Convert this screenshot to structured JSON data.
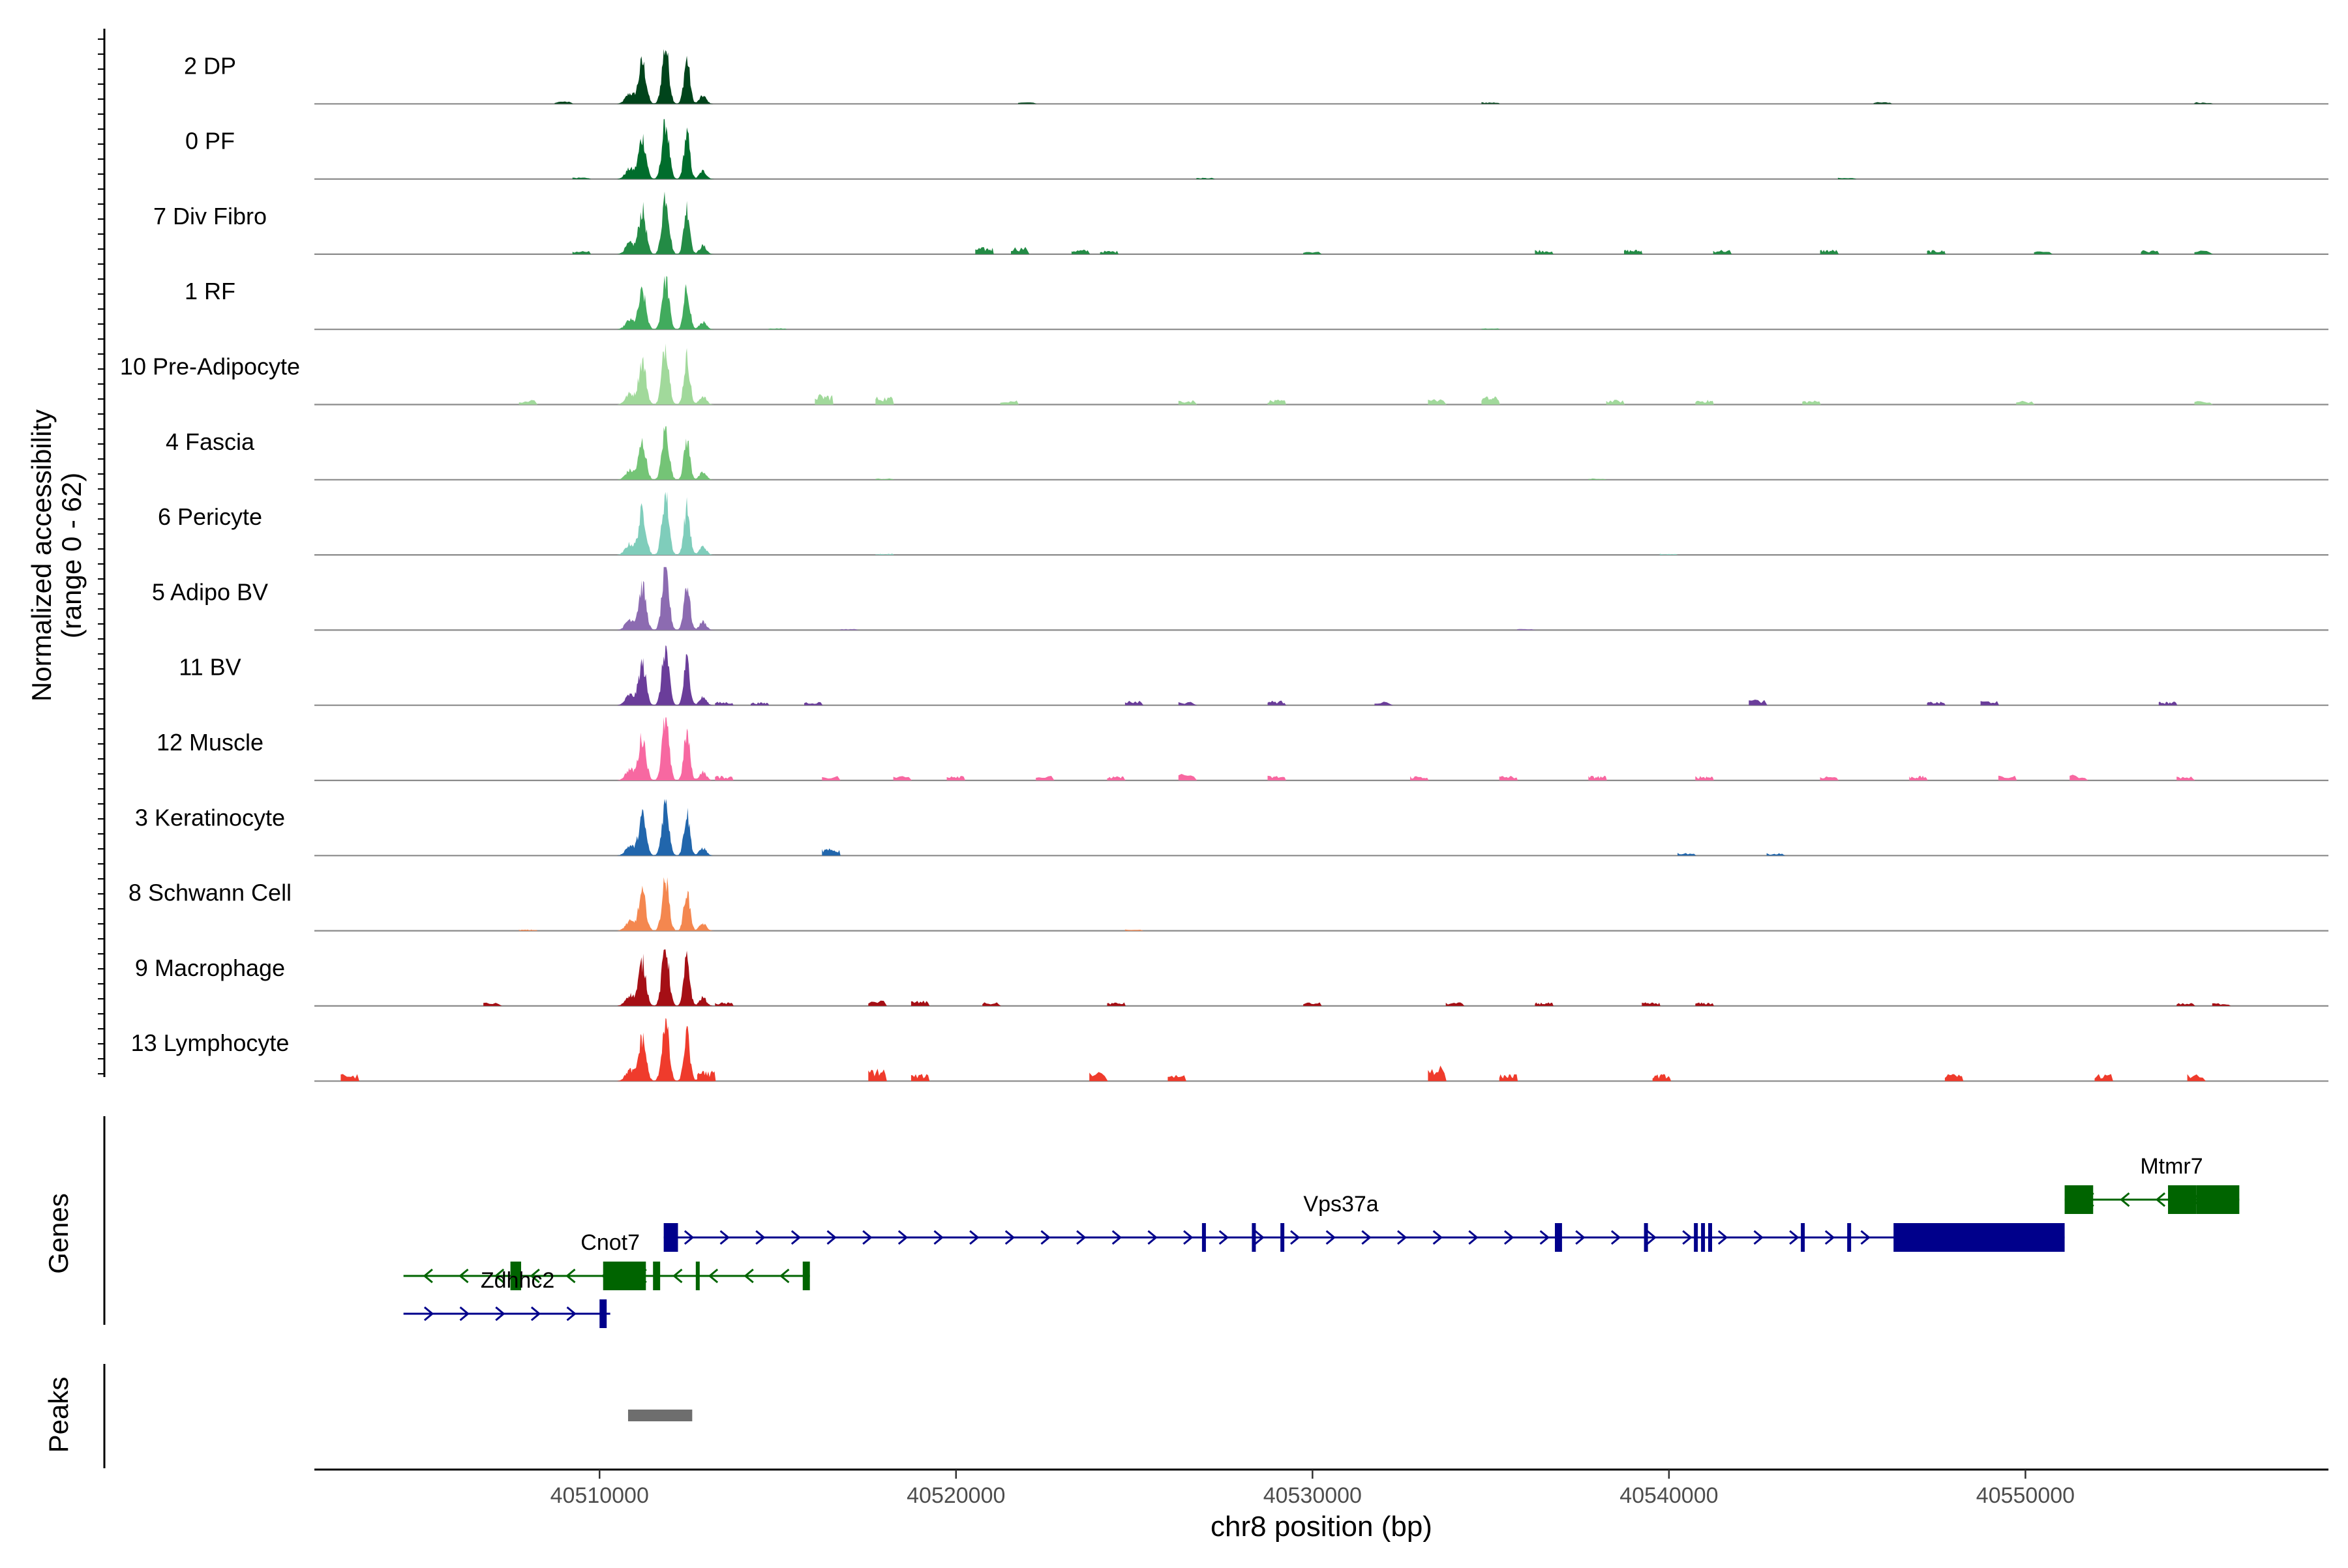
{
  "chart_data": {
    "type": "coverage-track",
    "genome": "chr8",
    "x_range": [
      40502000,
      40558500
    ],
    "xlabel": "chr8 position (bp)",
    "x_ticks": [
      {
        "value": 40510000,
        "label": "40510000"
      },
      {
        "value": 40520000,
        "label": "40520000"
      },
      {
        "value": 40530000,
        "label": "40530000"
      },
      {
        "value": 40540000,
        "label": "40540000"
      },
      {
        "value": 40550000,
        "label": "40550000"
      }
    ],
    "y_axis": {
      "label_line1": "Normalized accessibility",
      "label_line2": "(range 0 - 62)",
      "range": [
        0,
        62
      ]
    },
    "tracks": [
      {
        "name": "2 DP",
        "color": "#00441B",
        "peak_intensity": 0.95,
        "background": [
          [
            40509000,
            0.04
          ],
          [
            40522000,
            0.03
          ],
          [
            40535000,
            0.03
          ],
          [
            40546000,
            0.03
          ],
          [
            40555000,
            0.03
          ]
        ]
      },
      {
        "name": "0 PF",
        "color": "#006D2C",
        "peak_intensity": 0.95,
        "background": [
          [
            40509500,
            0.03
          ],
          [
            40527000,
            0.02
          ],
          [
            40545000,
            0.02
          ]
        ]
      },
      {
        "name": "7 Div Fibro",
        "color": "#238B45",
        "peak_intensity": 1.0,
        "background": [
          [
            40509500,
            0.06
          ],
          [
            40520800,
            0.12
          ],
          [
            40521800,
            0.13
          ],
          [
            40523500,
            0.08
          ],
          [
            40524300,
            0.06
          ],
          [
            40530000,
            0.06
          ],
          [
            40536500,
            0.08
          ],
          [
            40539000,
            0.08
          ],
          [
            40541500,
            0.08
          ],
          [
            40544500,
            0.08
          ],
          [
            40547500,
            0.07
          ],
          [
            40550500,
            0.06
          ],
          [
            40553500,
            0.07
          ],
          [
            40555000,
            0.06
          ]
        ]
      },
      {
        "name": "1 RF",
        "color": "#41AB5D",
        "peak_intensity": 0.85,
        "background": [
          [
            40515000,
            0.02
          ],
          [
            40535000,
            0.02
          ]
        ]
      },
      {
        "name": "10 Pre-Adipocyte",
        "color": "#A1D99B",
        "peak_intensity": 1.0,
        "background": [
          [
            40508000,
            0.08
          ],
          [
            40516300,
            0.18
          ],
          [
            40518000,
            0.14
          ],
          [
            40521500,
            0.08
          ],
          [
            40526500,
            0.08
          ],
          [
            40529000,
            0.08
          ],
          [
            40533500,
            0.12
          ],
          [
            40535000,
            0.14
          ],
          [
            40538500,
            0.08
          ],
          [
            40541000,
            0.08
          ],
          [
            40544000,
            0.07
          ],
          [
            40550000,
            0.07
          ],
          [
            40555000,
            0.06
          ]
        ]
      },
      {
        "name": "4 Fascia",
        "color": "#74C476",
        "peak_intensity": 0.85,
        "background": [
          [
            40518000,
            0.02
          ],
          [
            40538000,
            0.02
          ]
        ]
      },
      {
        "name": "6 Pericyte",
        "color": "#7FCDBB",
        "peak_intensity": 1.0,
        "background": [
          [
            40518000,
            0.02
          ],
          [
            40540000,
            0.02
          ]
        ]
      },
      {
        "name": "5 Adipo BV",
        "color": "#8C6BB1",
        "peak_intensity": 1.0,
        "background": [
          [
            40517000,
            0.02
          ],
          [
            40536000,
            0.02
          ]
        ]
      },
      {
        "name": "11 BV",
        "color": "#6A3D9A",
        "peak_intensity": 0.95,
        "background": [
          [
            40513500,
            0.06
          ],
          [
            40514500,
            0.05
          ],
          [
            40516000,
            0.06
          ],
          [
            40525000,
            0.08
          ],
          [
            40526500,
            0.06
          ],
          [
            40529000,
            0.08
          ],
          [
            40532000,
            0.06
          ],
          [
            40542500,
            0.1
          ],
          [
            40547500,
            0.06
          ],
          [
            40549000,
            0.08
          ],
          [
            40554000,
            0.06
          ]
        ]
      },
      {
        "name": "12 Muscle",
        "color": "#F768A1",
        "peak_intensity": 1.0,
        "background": [
          [
            40513500,
            0.08
          ],
          [
            40516500,
            0.08
          ],
          [
            40518500,
            0.08
          ],
          [
            40520000,
            0.1
          ],
          [
            40522500,
            0.08
          ],
          [
            40524500,
            0.07
          ],
          [
            40526500,
            0.12
          ],
          [
            40529000,
            0.08
          ],
          [
            40533000,
            0.08
          ],
          [
            40535500,
            0.08
          ],
          [
            40538000,
            0.08
          ],
          [
            40541000,
            0.08
          ],
          [
            40544500,
            0.08
          ],
          [
            40547000,
            0.08
          ],
          [
            40549500,
            0.08
          ],
          [
            40551500,
            0.1
          ],
          [
            40554500,
            0.07
          ]
        ]
      },
      {
        "name": "3 Keratinocyte",
        "color": "#2166AC",
        "peak_intensity": 0.9,
        "background": [
          [
            40516500,
            0.12
          ],
          [
            40540500,
            0.05
          ],
          [
            40543000,
            0.04
          ]
        ]
      },
      {
        "name": "8 Schwann Cell",
        "color": "#F4874F",
        "peak_intensity": 0.85,
        "background": [
          [
            40508000,
            0.02
          ],
          [
            40525000,
            0.02
          ]
        ]
      },
      {
        "name": "9 Macrophage",
        "color": "#A50F15",
        "peak_intensity": 1.0,
        "background": [
          [
            40507000,
            0.06
          ],
          [
            40513500,
            0.06
          ],
          [
            40517800,
            0.1
          ],
          [
            40519000,
            0.09
          ],
          [
            40521000,
            0.06
          ],
          [
            40524500,
            0.06
          ],
          [
            40530000,
            0.06
          ],
          [
            40534000,
            0.06
          ],
          [
            40536500,
            0.06
          ],
          [
            40539500,
            0.06
          ],
          [
            40541000,
            0.06
          ],
          [
            40554500,
            0.05
          ],
          [
            40555500,
            0.05
          ]
        ]
      },
      {
        "name": "13 Lymphocyte",
        "color": "#EF3B2C",
        "peak_intensity": 1.0,
        "background": [
          [
            40503000,
            0.12
          ],
          [
            40513000,
            0.18
          ],
          [
            40517800,
            0.22
          ],
          [
            40519000,
            0.12
          ],
          [
            40524000,
            0.18
          ],
          [
            40526200,
            0.12
          ],
          [
            40533500,
            0.28
          ],
          [
            40535500,
            0.12
          ],
          [
            40539800,
            0.12
          ],
          [
            40548000,
            0.12
          ],
          [
            40552200,
            0.12
          ],
          [
            40554800,
            0.12
          ]
        ]
      }
    ],
    "genes_label": "Genes",
    "peaks_label": "Peaks",
    "genes": [
      {
        "name": "Mtmr7",
        "strand": "-",
        "row": 0,
        "color": "#006400",
        "start": 40551100,
        "end": 40556000,
        "label_pos": 40554100,
        "exons": [
          [
            40551100,
            40551900
          ],
          [
            40554000,
            40554800
          ],
          [
            40554800,
            40556000
          ]
        ]
      },
      {
        "name": "Vps37a",
        "strand": "+",
        "row": 1,
        "color": "#00008B",
        "start": 40511800,
        "end": 40551100,
        "label_pos": 40530800,
        "exons": [
          [
            40511800,
            40512200
          ],
          [
            40526900,
            40527000
          ],
          [
            40528300,
            40528400
          ],
          [
            40529100,
            40529200
          ],
          [
            40536800,
            40537000
          ],
          [
            40539300,
            40539400
          ],
          [
            40540700,
            40540800
          ],
          [
            40540900,
            40541000
          ],
          [
            40541100,
            40541200
          ],
          [
            40543700,
            40543800
          ],
          [
            40545000,
            40545100
          ],
          [
            40546300,
            40551100
          ]
        ]
      },
      {
        "name": "Cnot7",
        "strand": "-",
        "row": 2,
        "color": "#006400",
        "start": 40504500,
        "end": 40515900,
        "label_pos": 40510300,
        "exons": [
          [
            40507500,
            40507800
          ],
          [
            40510100,
            40511300
          ],
          [
            40511500,
            40511700
          ],
          [
            40512700,
            40512800
          ],
          [
            40515700,
            40515900
          ]
        ]
      },
      {
        "name": "Zdhhc2",
        "strand": "+",
        "row": 3,
        "color": "#00008B",
        "start": 40504500,
        "end": 40510300,
        "label_pos": 40507700,
        "exons": [
          [
            40510000,
            40510200
          ]
        ]
      }
    ],
    "peaks": [
      [
        40510800,
        40512600
      ]
    ]
  }
}
